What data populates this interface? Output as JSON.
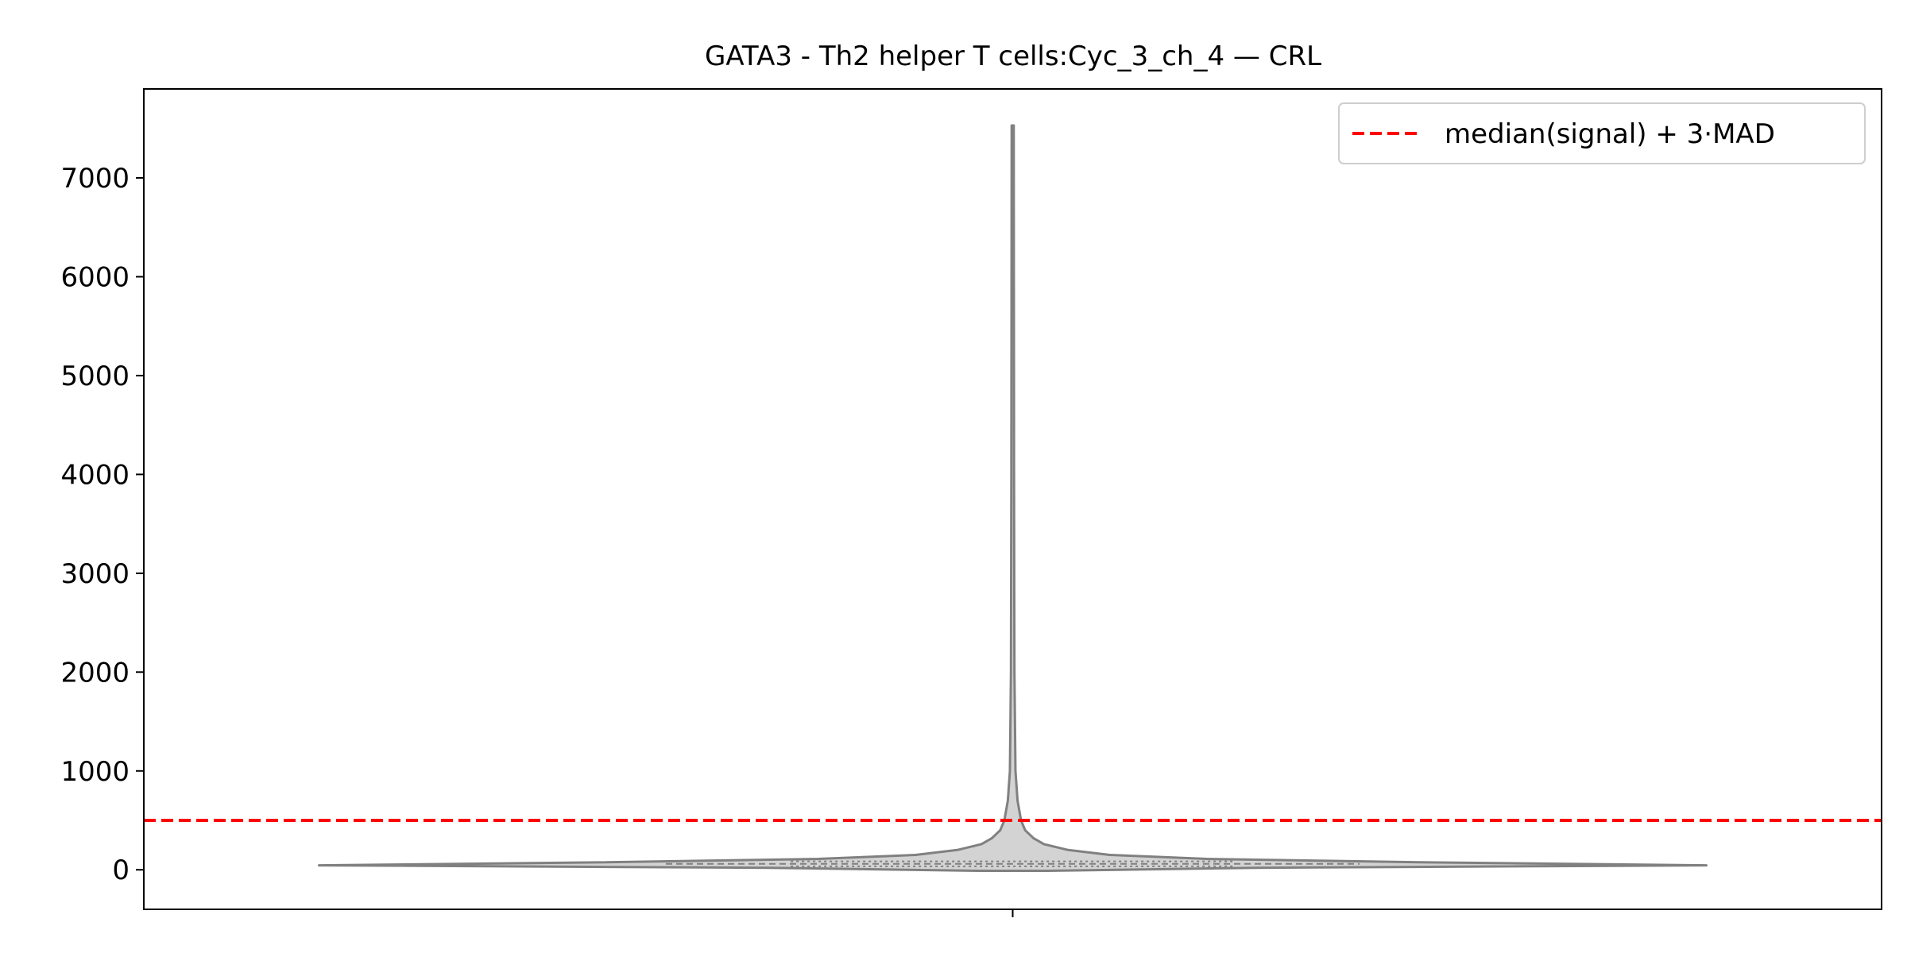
{
  "chart_data": {
    "type": "violin",
    "title": "GATA3 - Th2 helper T cells:Cyc_3_ch_4 — CRL",
    "xlabel": "",
    "ylabel": "",
    "ylim": [
      -400,
      7900
    ],
    "yticks": [
      0,
      1000,
      2000,
      3000,
      4000,
      5000,
      6000,
      7000
    ],
    "grid": false,
    "legend": {
      "position": "top-right",
      "entries": [
        {
          "label": "median(signal) + 3·MAD",
          "style": "dashed",
          "color": "#ff0000"
        }
      ]
    },
    "threshold": {
      "label": "median(signal) + 3·MAD",
      "value": 500,
      "color": "#ff0000"
    },
    "violin": {
      "fill_color": "#d3d3d3",
      "edge_color": "#808080",
      "min": -10,
      "max": 7530,
      "median": 60,
      "density_profile": [
        {
          "y": -10,
          "width": 0.05
        },
        {
          "y": 20,
          "width": 0.35
        },
        {
          "y": 45,
          "width": 1.0
        },
        {
          "y": 75,
          "width": 0.6
        },
        {
          "y": 110,
          "width": 0.28
        },
        {
          "y": 150,
          "width": 0.14
        },
        {
          "y": 200,
          "width": 0.08
        },
        {
          "y": 260,
          "width": 0.045
        },
        {
          "y": 320,
          "width": 0.03
        },
        {
          "y": 400,
          "width": 0.018
        },
        {
          "y": 500,
          "width": 0.012
        },
        {
          "y": 700,
          "width": 0.007
        },
        {
          "y": 1000,
          "width": 0.004
        },
        {
          "y": 2000,
          "width": 0.0025
        },
        {
          "y": 4000,
          "width": 0.002
        },
        {
          "y": 7530,
          "width": 0.0015
        }
      ]
    }
  }
}
